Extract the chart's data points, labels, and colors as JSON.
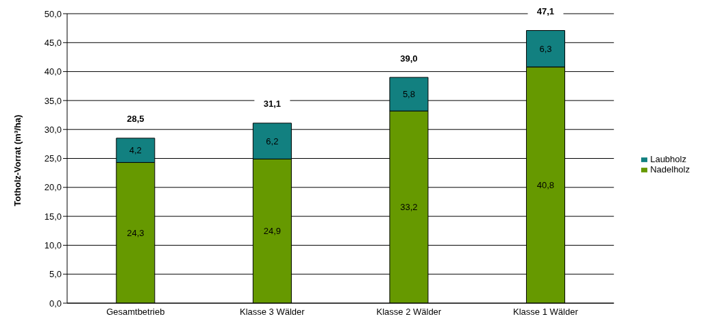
{
  "chart_data": {
    "type": "bar",
    "stacked": true,
    "ylabel": "Totholz-Vorrat (m³/ha)",
    "categories": [
      "Gesamtbetrieb",
      "Klasse 3 Wälder",
      "Klasse 2 Wälder",
      "Klasse 1 Wälder"
    ],
    "series": [
      {
        "name": "Nadelholz",
        "color": "#669900",
        "values": [
          24.3,
          24.9,
          33.2,
          40.8
        ],
        "value_labels": [
          "24,3",
          "24,9",
          "33,2",
          "40,8"
        ]
      },
      {
        "name": "Laubholz",
        "color": "#128080",
        "values": [
          4.2,
          6.2,
          5.8,
          6.3
        ],
        "value_labels": [
          "4,2",
          "6,2",
          "5,8",
          "6,3"
        ]
      }
    ],
    "totals": [
      "28,5",
      "31,1",
      "39,0",
      "47,1"
    ],
    "ylim": [
      0,
      50
    ],
    "yticks": [
      {
        "value": 0,
        "label": "0,0"
      },
      {
        "value": 5,
        "label": "5,0"
      },
      {
        "value": 10,
        "label": "10,0"
      },
      {
        "value": 15,
        "label": "15,0"
      },
      {
        "value": 20,
        "label": "20,0"
      },
      {
        "value": 25,
        "label": "25,0"
      },
      {
        "value": 30,
        "label": "30,0"
      },
      {
        "value": 35,
        "label": "35,0"
      },
      {
        "value": 40,
        "label": "40,0"
      },
      {
        "value": 45,
        "label": "45,0"
      },
      {
        "value": 50,
        "label": "50,0"
      }
    ],
    "grid": "y",
    "legend": "right"
  }
}
